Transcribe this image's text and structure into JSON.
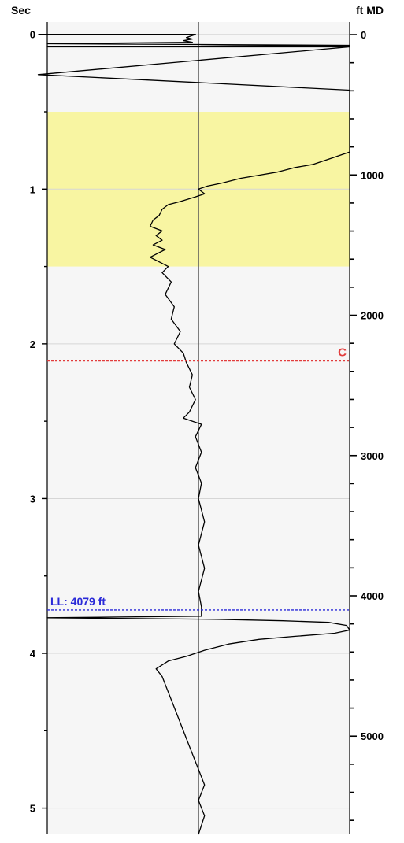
{
  "chart_data": {
    "type": "line",
    "title": "",
    "left_axis": {
      "label": "Sec",
      "range": [
        -0.08,
        5.17
      ],
      "ticks": [
        0,
        1,
        2,
        3,
        4,
        5
      ],
      "tick_labels": [
        "0",
        "1",
        "2",
        "3",
        "4",
        "5"
      ],
      "minor_step": 0.5
    },
    "right_axis": {
      "label": "ft MD",
      "range": [
        -90,
        5700
      ],
      "ticks": [
        0,
        1000,
        2000,
        3000,
        4000,
        5000
      ],
      "tick_labels": [
        "0",
        "1000",
        "2000",
        "3000",
        "4000",
        "5000"
      ],
      "minor_step": 200
    },
    "grid": true,
    "center_line_value": 0.5,
    "shaded_interval": {
      "from_sec": 0.5,
      "to_sec": 1.5,
      "color": "#f8f5a2"
    },
    "markers": [
      {
        "label": "C",
        "sec": 2.11,
        "color": "#e23c3c"
      },
      {
        "label": "LL: 4079 ft",
        "sec": 3.72,
        "color": "#2a2ad8"
      }
    ],
    "series": [
      {
        "color": "#000000",
        "x_range": [
          0,
          1
        ],
        "points": [
          [
            -0.03,
            0.0
          ],
          [
            0.49,
            0.0
          ],
          [
            0.46,
            0.02
          ],
          [
            0.48,
            0.03
          ],
          [
            0.45,
            0.04
          ],
          [
            0.48,
            0.05
          ],
          [
            0.0,
            0.06
          ],
          [
            1.0,
            0.07
          ],
          [
            0.0,
            0.08
          ],
          [
            1.0,
            0.08
          ],
          [
            -0.03,
            0.26
          ],
          [
            1.0,
            0.36
          ],
          [
            1.0,
            0.76
          ],
          [
            0.94,
            0.8
          ],
          [
            0.88,
            0.84
          ],
          [
            0.82,
            0.86
          ],
          [
            0.76,
            0.89
          ],
          [
            0.7,
            0.91
          ],
          [
            0.64,
            0.93
          ],
          [
            0.58,
            0.96
          ],
          [
            0.53,
            0.98
          ],
          [
            0.5,
            1.0
          ],
          [
            0.52,
            1.03
          ],
          [
            0.49,
            1.05
          ],
          [
            0.44,
            1.08
          ],
          [
            0.4,
            1.1
          ],
          [
            0.38,
            1.13
          ],
          [
            0.37,
            1.17
          ],
          [
            0.35,
            1.2
          ],
          [
            0.34,
            1.24
          ],
          [
            0.38,
            1.27
          ],
          [
            0.36,
            1.3
          ],
          [
            0.38,
            1.33
          ],
          [
            0.35,
            1.36
          ],
          [
            0.39,
            1.39
          ],
          [
            0.36,
            1.42
          ],
          [
            0.34,
            1.44
          ],
          [
            0.37,
            1.47
          ],
          [
            0.4,
            1.5
          ],
          [
            0.38,
            1.54
          ],
          [
            0.41,
            1.6
          ],
          [
            0.39,
            1.68
          ],
          [
            0.42,
            1.76
          ],
          [
            0.41,
            1.84
          ],
          [
            0.44,
            1.92
          ],
          [
            0.42,
            2.0
          ],
          [
            0.45,
            2.06
          ],
          [
            0.46,
            2.12
          ],
          [
            0.48,
            2.2
          ],
          [
            0.47,
            2.28
          ],
          [
            0.49,
            2.36
          ],
          [
            0.47,
            2.44
          ],
          [
            0.45,
            2.48
          ],
          [
            0.51,
            2.52
          ],
          [
            0.49,
            2.6
          ],
          [
            0.51,
            2.7
          ],
          [
            0.49,
            2.8
          ],
          [
            0.51,
            2.9
          ],
          [
            0.5,
            3.0
          ],
          [
            0.52,
            3.15
          ],
          [
            0.5,
            3.3
          ],
          [
            0.52,
            3.45
          ],
          [
            0.5,
            3.6
          ],
          [
            0.51,
            3.7
          ],
          [
            0.51,
            3.76
          ],
          [
            0.0,
            3.77
          ],
          [
            0.56,
            3.78
          ],
          [
            0.78,
            3.79
          ],
          [
            0.93,
            3.8
          ],
          [
            0.99,
            3.82
          ],
          [
            1.0,
            3.85
          ],
          [
            0.95,
            3.87
          ],
          [
            0.82,
            3.89
          ],
          [
            0.7,
            3.91
          ],
          [
            0.6,
            3.94
          ],
          [
            0.52,
            3.98
          ],
          [
            0.46,
            4.02
          ],
          [
            0.4,
            4.05
          ],
          [
            0.36,
            4.1
          ],
          [
            0.38,
            4.15
          ],
          [
            0.4,
            4.25
          ],
          [
            0.42,
            4.35
          ],
          [
            0.44,
            4.45
          ],
          [
            0.46,
            4.55
          ],
          [
            0.48,
            4.65
          ],
          [
            0.5,
            4.75
          ],
          [
            0.52,
            4.85
          ],
          [
            0.5,
            4.95
          ],
          [
            0.52,
            5.05
          ],
          [
            0.5,
            5.17
          ]
        ]
      }
    ]
  }
}
